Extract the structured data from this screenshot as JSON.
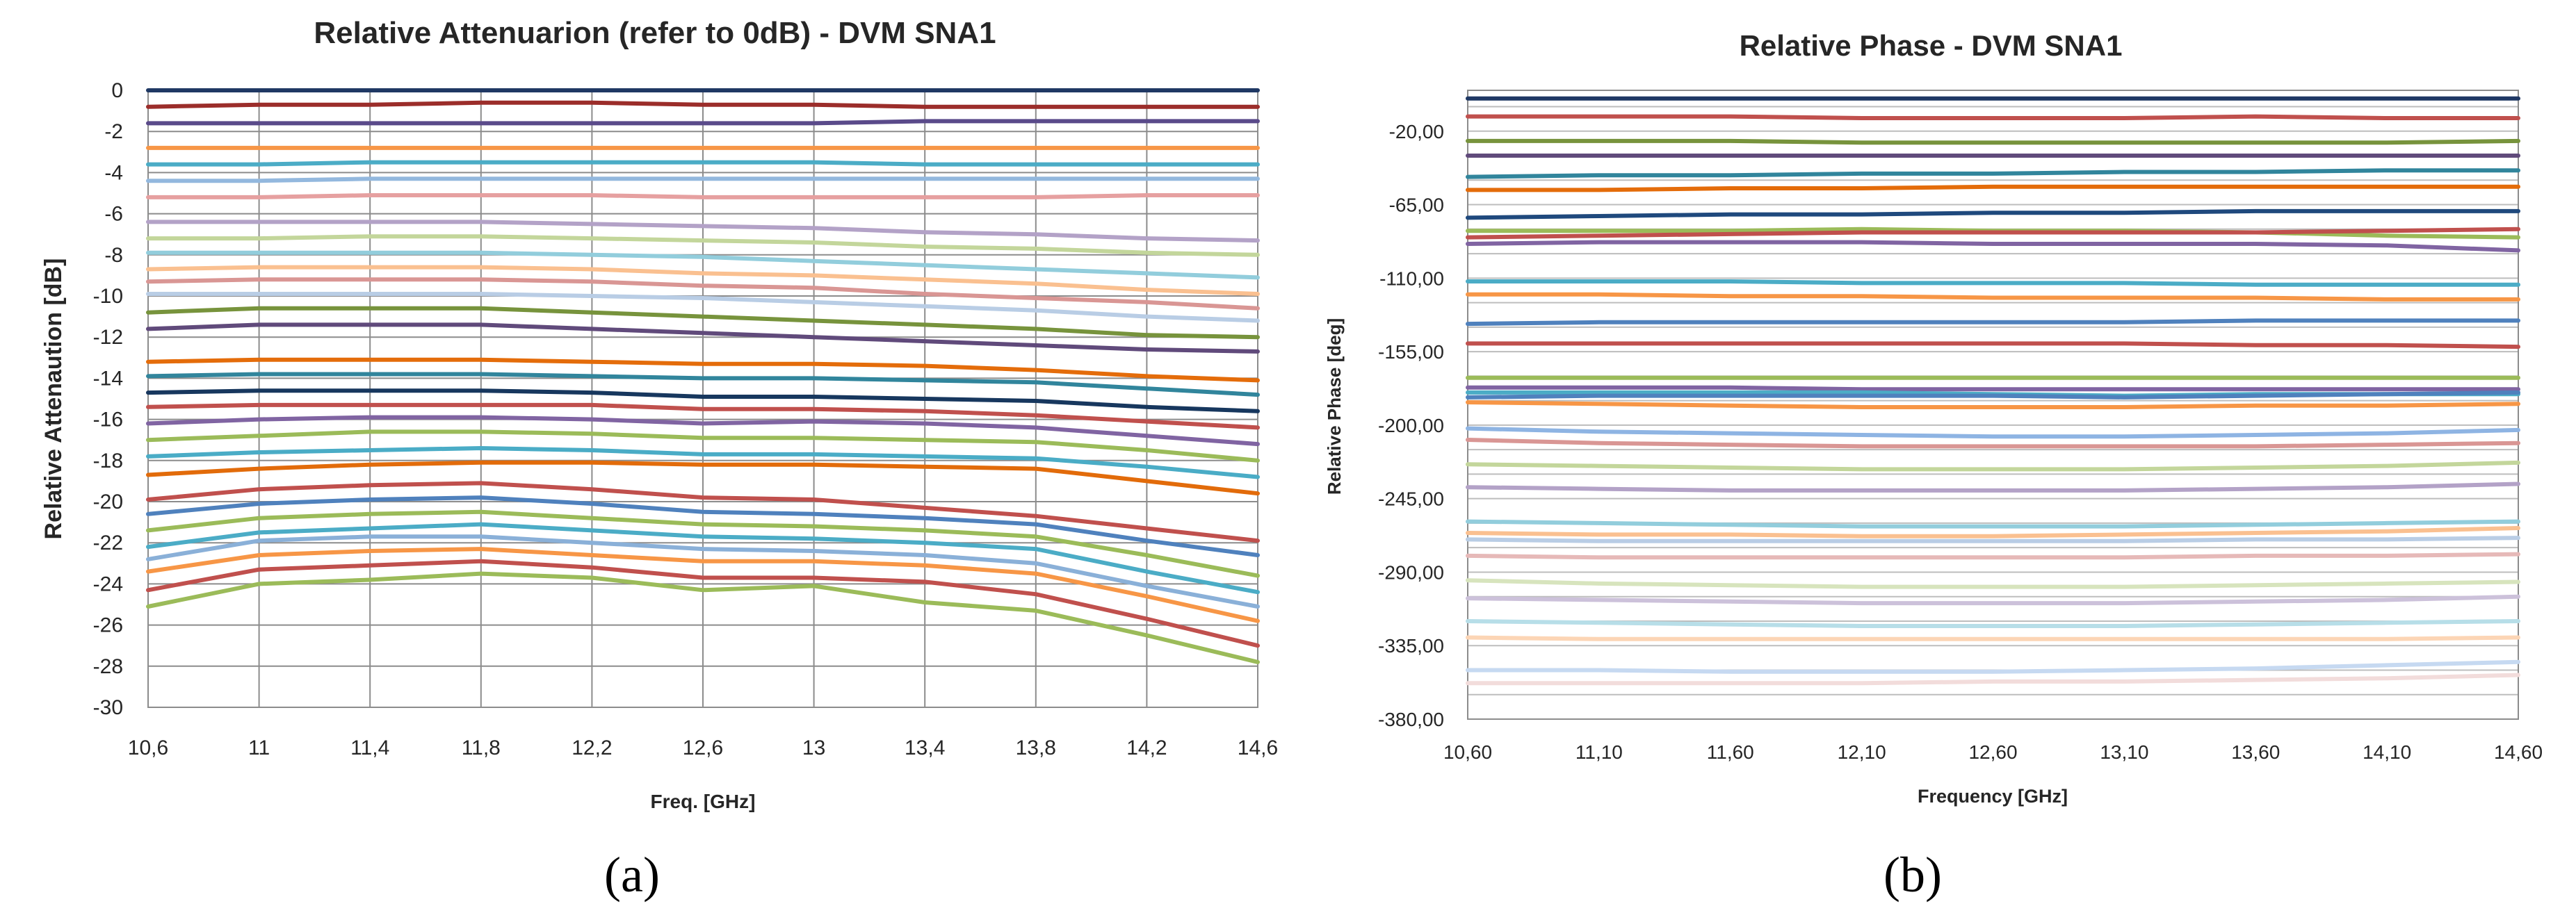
{
  "chart_data": [
    {
      "type": "line",
      "panel_label": "(a)",
      "title": "Relative Attenuarion (refer to 0dB) - DVM SNA1",
      "xlabel": "Freq. [GHz]",
      "ylabel": "Relative Attenaution [dB]",
      "xlim": [
        10.6,
        14.6
      ],
      "ylim": [
        -30,
        0
      ],
      "grid": "vertical and horizontal",
      "legend": "none",
      "x_tick_labels": [
        "10,6",
        "11",
        "11,4",
        "11,8",
        "12,2",
        "12,6",
        "13",
        "13,4",
        "13,8",
        "14,2",
        "14,6"
      ],
      "y_tick_labels": [
        "0",
        "-2",
        "-4",
        "-6",
        "-8",
        "-10",
        "-12",
        "-14",
        "-16",
        "-18",
        "-20",
        "-22",
        "-24",
        "-26",
        "-28",
        "-30"
      ],
      "x": [
        10.6,
        11.0,
        11.4,
        11.8,
        12.2,
        12.6,
        13.0,
        13.4,
        13.8,
        14.2,
        14.6
      ],
      "series": [
        {
          "color": "#1f3864",
          "values": [
            0,
            0,
            0,
            0,
            0,
            0,
            0,
            0,
            0,
            0,
            0
          ]
        },
        {
          "color": "#9b2d2a",
          "values": [
            -0.8,
            -0.7,
            -0.7,
            -0.6,
            -0.6,
            -0.7,
            -0.7,
            -0.8,
            -0.8,
            -0.8,
            -0.8
          ]
        },
        {
          "color": "#5a4a8a",
          "values": [
            -1.6,
            -1.6,
            -1.6,
            -1.6,
            -1.6,
            -1.6,
            -1.6,
            -1.5,
            -1.5,
            -1.5,
            -1.5
          ]
        },
        {
          "color": "#f79646",
          "values": [
            -2.8,
            -2.8,
            -2.8,
            -2.8,
            -2.8,
            -2.8,
            -2.8,
            -2.8,
            -2.8,
            -2.8,
            -2.8
          ]
        },
        {
          "color": "#4bacc6",
          "values": [
            -3.6,
            -3.6,
            -3.5,
            -3.5,
            -3.5,
            -3.5,
            -3.5,
            -3.6,
            -3.6,
            -3.6,
            -3.6
          ]
        },
        {
          "color": "#93b8de",
          "values": [
            -4.4,
            -4.4,
            -4.3,
            -4.3,
            -4.3,
            -4.3,
            -4.3,
            -4.3,
            -4.3,
            -4.3,
            -4.3
          ]
        },
        {
          "color": "#e6a0a0",
          "values": [
            -5.2,
            -5.2,
            -5.1,
            -5.1,
            -5.1,
            -5.2,
            -5.2,
            -5.2,
            -5.2,
            -5.1,
            -5.1
          ]
        },
        {
          "color": "#b3a2c7",
          "values": [
            -6.4,
            -6.4,
            -6.4,
            -6.4,
            -6.5,
            -6.6,
            -6.7,
            -6.9,
            -7.0,
            -7.2,
            -7.3
          ]
        },
        {
          "color": "#c3d69b",
          "values": [
            -7.2,
            -7.2,
            -7.1,
            -7.1,
            -7.2,
            -7.3,
            -7.4,
            -7.6,
            -7.7,
            -7.9,
            -8.0
          ]
        },
        {
          "color": "#92cddc",
          "values": [
            -7.9,
            -7.9,
            -7.9,
            -7.9,
            -8.0,
            -8.1,
            -8.3,
            -8.5,
            -8.7,
            -8.9,
            -9.1
          ]
        },
        {
          "color": "#fac090",
          "values": [
            -8.7,
            -8.6,
            -8.6,
            -8.6,
            -8.7,
            -8.9,
            -9.0,
            -9.2,
            -9.4,
            -9.7,
            -9.9
          ]
        },
        {
          "color": "#d99694",
          "values": [
            -9.3,
            -9.2,
            -9.2,
            -9.2,
            -9.3,
            -9.5,
            -9.6,
            -9.9,
            -10.1,
            -10.3,
            -10.6
          ]
        },
        {
          "color": "#b9cde5",
          "values": [
            -9.9,
            -9.9,
            -9.9,
            -9.9,
            -10.0,
            -10.1,
            -10.3,
            -10.5,
            -10.7,
            -11.0,
            -11.2
          ]
        },
        {
          "color": "#77933c",
          "values": [
            -10.8,
            -10.6,
            -10.6,
            -10.6,
            -10.8,
            -11.0,
            -11.2,
            -11.4,
            -11.6,
            -11.9,
            -12.0
          ]
        },
        {
          "color": "#604a7b",
          "values": [
            -11.6,
            -11.4,
            -11.4,
            -11.4,
            -11.6,
            -11.8,
            -12.0,
            -12.2,
            -12.4,
            -12.6,
            -12.7
          ]
        },
        {
          "color": "#e46c0a",
          "values": [
            -13.2,
            -13.1,
            -13.1,
            -13.1,
            -13.2,
            -13.3,
            -13.3,
            -13.4,
            -13.6,
            -13.9,
            -14.1
          ]
        },
        {
          "color": "#31859c",
          "values": [
            -13.9,
            -13.8,
            -13.8,
            -13.8,
            -13.9,
            -14.0,
            -14.0,
            -14.1,
            -14.2,
            -14.5,
            -14.8
          ]
        },
        {
          "color": "#17375e",
          "values": [
            -14.7,
            -14.6,
            -14.6,
            -14.6,
            -14.7,
            -14.9,
            -14.9,
            -15.0,
            -15.1,
            -15.4,
            -15.6
          ]
        },
        {
          "color": "#c0504d",
          "values": [
            -15.4,
            -15.3,
            -15.3,
            -15.3,
            -15.3,
            -15.5,
            -15.5,
            -15.6,
            -15.8,
            -16.1,
            -16.4
          ]
        },
        {
          "color": "#8064a2",
          "values": [
            -16.2,
            -16.0,
            -15.9,
            -15.9,
            -16.0,
            -16.2,
            -16.1,
            -16.2,
            -16.4,
            -16.8,
            -17.2
          ]
        },
        {
          "color": "#9bbb59",
          "values": [
            -17.0,
            -16.8,
            -16.6,
            -16.6,
            -16.7,
            -16.9,
            -16.9,
            -17.0,
            -17.1,
            -17.5,
            -18.0
          ]
        },
        {
          "color": "#4aacc6",
          "values": [
            -17.8,
            -17.6,
            -17.5,
            -17.4,
            -17.5,
            -17.7,
            -17.7,
            -17.8,
            -17.9,
            -18.3,
            -18.8
          ]
        },
        {
          "color": "#e26b0a",
          "values": [
            -18.7,
            -18.4,
            -18.2,
            -18.1,
            -18.1,
            -18.2,
            -18.2,
            -18.3,
            -18.4,
            -19.0,
            -19.6
          ]
        },
        {
          "color": "#c0504d",
          "values": [
            -19.9,
            -19.4,
            -19.2,
            -19.1,
            -19.4,
            -19.8,
            -19.9,
            -20.3,
            -20.7,
            -21.3,
            -21.9
          ]
        },
        {
          "color": "#4f81bd",
          "values": [
            -20.6,
            -20.1,
            -19.9,
            -19.8,
            -20.1,
            -20.5,
            -20.6,
            -20.8,
            -21.1,
            -21.9,
            -22.6
          ]
        },
        {
          "color": "#9bbb59",
          "values": [
            -21.4,
            -20.8,
            -20.6,
            -20.5,
            -20.8,
            -21.1,
            -21.2,
            -21.4,
            -21.7,
            -22.6,
            -23.6
          ]
        },
        {
          "color": "#4bacc6",
          "values": [
            -22.2,
            -21.5,
            -21.3,
            -21.1,
            -21.4,
            -21.7,
            -21.8,
            -22.0,
            -22.3,
            -23.4,
            -24.4
          ]
        },
        {
          "color": "#8ab0d8",
          "values": [
            -22.8,
            -21.9,
            -21.7,
            -21.7,
            -22.0,
            -22.3,
            -22.4,
            -22.6,
            -23.0,
            -24.1,
            -25.1
          ]
        },
        {
          "color": "#f79646",
          "values": [
            -23.4,
            -22.6,
            -22.4,
            -22.3,
            -22.6,
            -22.9,
            -22.9,
            -23.1,
            -23.5,
            -24.6,
            -25.8
          ]
        },
        {
          "color": "#c0504d",
          "values": [
            -24.3,
            -23.3,
            -23.1,
            -22.9,
            -23.2,
            -23.7,
            -23.7,
            -23.9,
            -24.5,
            -25.7,
            -27.0
          ]
        },
        {
          "color": "#9bbb59",
          "values": [
            -25.1,
            -24.0,
            -23.8,
            -23.5,
            -23.7,
            -24.3,
            -24.1,
            -24.9,
            -25.3,
            -26.5,
            -27.8
          ]
        }
      ]
    },
    {
      "type": "line",
      "panel_label": "(b)",
      "title": "Relative Phase - DVM SNA1",
      "xlabel": "Frequency [GHz]",
      "ylabel": "Relative Phase [deg]",
      "xlim": [
        10.6,
        14.6
      ],
      "ylim": [
        -380,
        5
      ],
      "grid": "horizontal",
      "legend": "none",
      "x_tick_labels": [
        "10,60",
        "11,10",
        "11,60",
        "12,10",
        "12,60",
        "13,10",
        "13,60",
        "14,10",
        "14,60"
      ],
      "y_tick_labels": [
        "-20,00",
        "-65,00",
        "-110,00",
        "-155,00",
        "-200,00",
        "-245,00",
        "-290,00",
        "-335,00",
        "-380,00"
      ],
      "x": [
        10.6,
        11.1,
        11.6,
        12.1,
        12.6,
        13.1,
        13.6,
        14.1,
        14.6
      ],
      "series": [
        {
          "color": "#1f3864",
          "values": [
            0,
            0,
            0,
            0,
            0,
            0,
            0,
            0,
            0
          ]
        },
        {
          "color": "#c0504d",
          "values": [
            -11,
            -11,
            -11,
            -12,
            -12,
            -12,
            -11,
            -12,
            -12
          ]
        },
        {
          "color": "#77933c",
          "values": [
            -26,
            -26,
            -26,
            -27,
            -27,
            -27,
            -27,
            -27,
            -26
          ]
        },
        {
          "color": "#604a7b",
          "values": [
            -35,
            -35,
            -35,
            -35,
            -35,
            -35,
            -35,
            -35,
            -35
          ]
        },
        {
          "color": "#31859c",
          "values": [
            -48,
            -47,
            -47,
            -46,
            -46,
            -45,
            -45,
            -44,
            -44
          ]
        },
        {
          "color": "#e46c0a",
          "values": [
            -56,
            -56,
            -55,
            -55,
            -54,
            -54,
            -54,
            -54,
            -54
          ]
        },
        {
          "color": "#1f497d",
          "values": [
            -73,
            -72,
            -71,
            -71,
            -70,
            -70,
            -69,
            -69,
            -69
          ]
        },
        {
          "color": "#9bbb59",
          "values": [
            -81,
            -81,
            -81,
            -80,
            -81,
            -81,
            -82,
            -84,
            -85
          ]
        },
        {
          "color": "#c0504d",
          "values": [
            -85,
            -84,
            -83,
            -82,
            -82,
            -82,
            -82,
            -81,
            -80
          ]
        },
        {
          "color": "#8064a2",
          "values": [
            -89,
            -88,
            -88,
            -88,
            -89,
            -89,
            -89,
            -90,
            -93
          ]
        },
        {
          "color": "#4bacc6",
          "values": [
            -112,
            -112,
            -112,
            -113,
            -113,
            -113,
            -114,
            -114,
            -114
          ]
        },
        {
          "color": "#f79646",
          "values": [
            -120,
            -120,
            -121,
            -121,
            -122,
            -122,
            -122,
            -123,
            -123
          ]
        },
        {
          "color": "#4f81bd",
          "values": [
            -138,
            -137,
            -137,
            -137,
            -137,
            -137,
            -136,
            -136,
            -136
          ]
        },
        {
          "color": "#c0504d",
          "values": [
            -150,
            -150,
            -150,
            -150,
            -150,
            -150,
            -151,
            -151,
            -152
          ]
        },
        {
          "color": "#9bbb59",
          "values": [
            -171,
            -171,
            -171,
            -171,
            -171,
            -171,
            -171,
            -171,
            -171
          ]
        },
        {
          "color": "#8064a2",
          "values": [
            -177,
            -177,
            -177,
            -178,
            -178,
            -178,
            -178,
            -178,
            -178
          ]
        },
        {
          "color": "#4bacc6",
          "values": [
            -180,
            -180,
            -180,
            -180,
            -181,
            -182,
            -181,
            -181,
            -181
          ]
        },
        {
          "color": "#4f81bd",
          "values": [
            -183,
            -182,
            -182,
            -182,
            -182,
            -183,
            -182,
            -181,
            -180
          ]
        },
        {
          "color": "#f79646",
          "values": [
            -186,
            -187,
            -188,
            -189,
            -189,
            -189,
            -188,
            -188,
            -187
          ]
        },
        {
          "color": "#8eb4e3",
          "values": [
            -202,
            -204,
            -205,
            -206,
            -207,
            -207,
            -206,
            -205,
            -203
          ]
        },
        {
          "color": "#d99694",
          "values": [
            -209,
            -211,
            -212,
            -213,
            -213,
            -213,
            -213,
            -212,
            -211
          ]
        },
        {
          "color": "#c3d69b",
          "values": [
            -224,
            -225,
            -226,
            -227,
            -227,
            -227,
            -226,
            -225,
            -223
          ]
        },
        {
          "color": "#b3a2c7",
          "values": [
            -238,
            -239,
            -240,
            -240,
            -240,
            -240,
            -239,
            -238,
            -236
          ]
        },
        {
          "color": "#92cddc",
          "values": [
            -259,
            -260,
            -261,
            -262,
            -262,
            -262,
            -261,
            -260,
            -259
          ]
        },
        {
          "color": "#fac090",
          "values": [
            -266,
            -267,
            -267,
            -268,
            -268,
            -267,
            -266,
            -265,
            -263
          ]
        },
        {
          "color": "#b9cde5",
          "values": [
            -270,
            -271,
            -271,
            -271,
            -271,
            -271,
            -270,
            -270,
            -269
          ]
        },
        {
          "color": "#e6b9b8",
          "values": [
            -280,
            -281,
            -281,
            -281,
            -281,
            -281,
            -280,
            -280,
            -279
          ]
        },
        {
          "color": "#d7e4bd",
          "values": [
            -295,
            -297,
            -298,
            -299,
            -299,
            -299,
            -298,
            -297,
            -296
          ]
        },
        {
          "color": "#ccc1da",
          "values": [
            -306,
            -307,
            -308,
            -309,
            -309,
            -309,
            -308,
            -307,
            -305
          ]
        },
        {
          "color": "#b7dee8",
          "values": [
            -320,
            -321,
            -322,
            -323,
            -323,
            -323,
            -322,
            -321,
            -320
          ]
        },
        {
          "color": "#fcd5b5",
          "values": [
            -330,
            -331,
            -331,
            -331,
            -331,
            -331,
            -331,
            -331,
            -330
          ]
        },
        {
          "color": "#c6d9f1",
          "values": [
            -350,
            -350,
            -351,
            -351,
            -351,
            -350,
            -349,
            -347,
            -345
          ]
        },
        {
          "color": "#f2dcdb",
          "values": [
            -358,
            -358,
            -358,
            -358,
            -357,
            -357,
            -356,
            -355,
            -353
          ]
        }
      ]
    }
  ]
}
